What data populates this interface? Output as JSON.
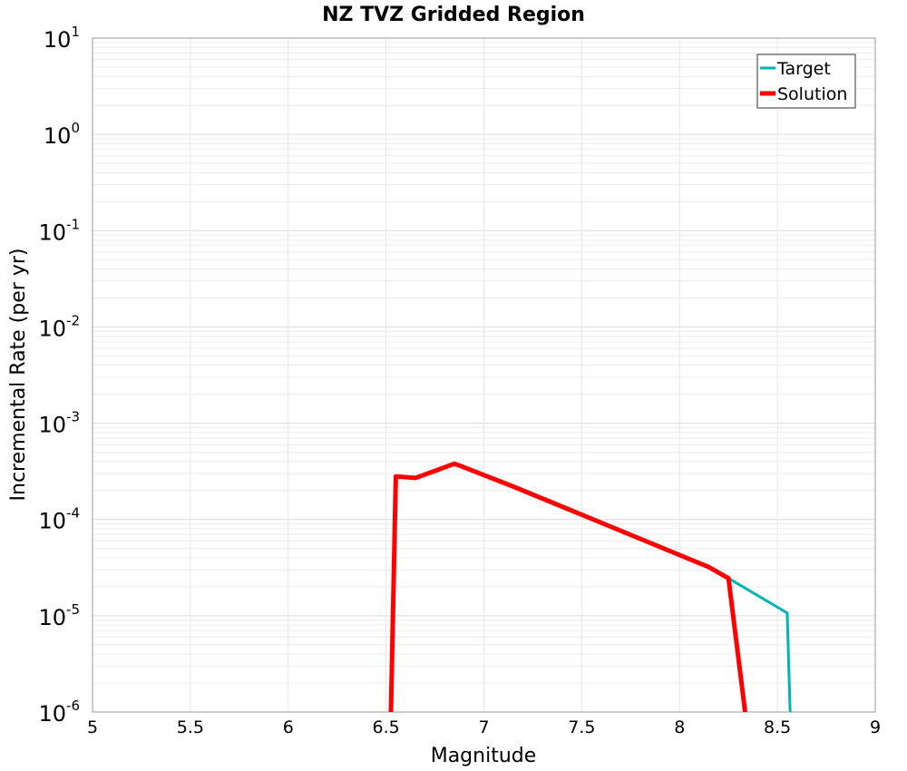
{
  "chart_data": {
    "type": "line",
    "title": "NZ TVZ Gridded Region",
    "xlabel": "Magnitude",
    "ylabel": "Incremental Rate (per yr)",
    "xlim": [
      5,
      9
    ],
    "ylim": [
      1e-06,
      10
    ],
    "yscale": "log",
    "grid": true,
    "legend_position": "top-right",
    "xticks": [
      "5",
      "5.5",
      "6",
      "6.5",
      "7",
      "7.5",
      "8",
      "8.5",
      "9"
    ],
    "xtick_values": [
      5,
      5.5,
      6,
      6.5,
      7,
      7.5,
      8,
      8.5,
      9
    ],
    "yticks": [
      {
        "base": "10",
        "exp": "1"
      },
      {
        "base": "10",
        "exp": "0"
      },
      {
        "base": "10",
        "exp": "-1"
      },
      {
        "base": "10",
        "exp": "-2"
      },
      {
        "base": "10",
        "exp": "-3"
      },
      {
        "base": "10",
        "exp": "-4"
      },
      {
        "base": "10",
        "exp": "-5"
      },
      {
        "base": "10",
        "exp": "-6"
      }
    ],
    "series": [
      {
        "name": "Target",
        "color": "#00b4b4",
        "x": [
          6.55,
          6.65,
          6.75,
          6.85,
          7.15,
          8.15,
          8.25,
          8.55,
          8.565
        ],
        "y": [
          0.00028,
          0.00027,
          0.00032,
          0.00038,
          0.00022,
          3.2e-05,
          2.45e-05,
          1.07e-05,
          1e-06
        ]
      },
      {
        "name": "Solution",
        "color": "#ff0000",
        "x": [
          6.525,
          6.55,
          6.65,
          6.75,
          6.85,
          7.15,
          8.15,
          8.25,
          8.335
        ],
        "y": [
          1e-06,
          0.00028,
          0.00027,
          0.00032,
          0.00038,
          0.00022,
          3.2e-05,
          2.45e-05,
          1e-06
        ]
      }
    ]
  }
}
